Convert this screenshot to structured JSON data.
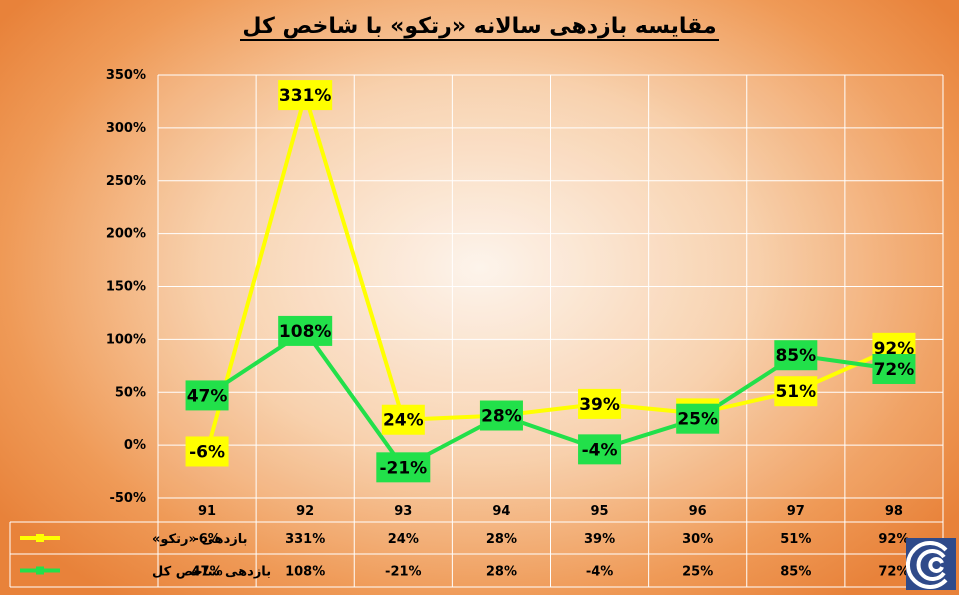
{
  "title": "مقایسه بازدهی سالانه «رتکو» با شاخص کل",
  "chart_data": {
    "type": "line",
    "categories": [
      "91",
      "92",
      "93",
      "94",
      "95",
      "96",
      "97",
      "98"
    ],
    "ylim": [
      -50,
      350
    ],
    "yticks": [
      -50,
      0,
      50,
      100,
      150,
      200,
      250,
      300,
      350
    ],
    "ytick_labels": [
      "-50%",
      "0%",
      "50%",
      "100%",
      "150%",
      "200%",
      "250%",
      "300%",
      "350%"
    ],
    "grid": true,
    "data_table": true,
    "series": [
      {
        "name": "بازدهی «رتکو»",
        "color": "#ffff00",
        "values": [
          -6,
          331,
          24,
          28,
          39,
          30,
          51,
          92
        ],
        "labels": [
          "-6%",
          "331%",
          "24%",
          "28%",
          "39%",
          "30%",
          "51%",
          "92%"
        ]
      },
      {
        "name": "بازدهی شاخص کل",
        "color": "#22e04a",
        "values": [
          47,
          108,
          -21,
          28,
          -4,
          25,
          85,
          72
        ],
        "labels": [
          "47%",
          "108%",
          "-21%",
          "28%",
          "-4%",
          "25%",
          "85%",
          "72%"
        ]
      }
    ]
  },
  "logo": {
    "icon": "company-logo-icon",
    "color": "#2f4a8a"
  }
}
